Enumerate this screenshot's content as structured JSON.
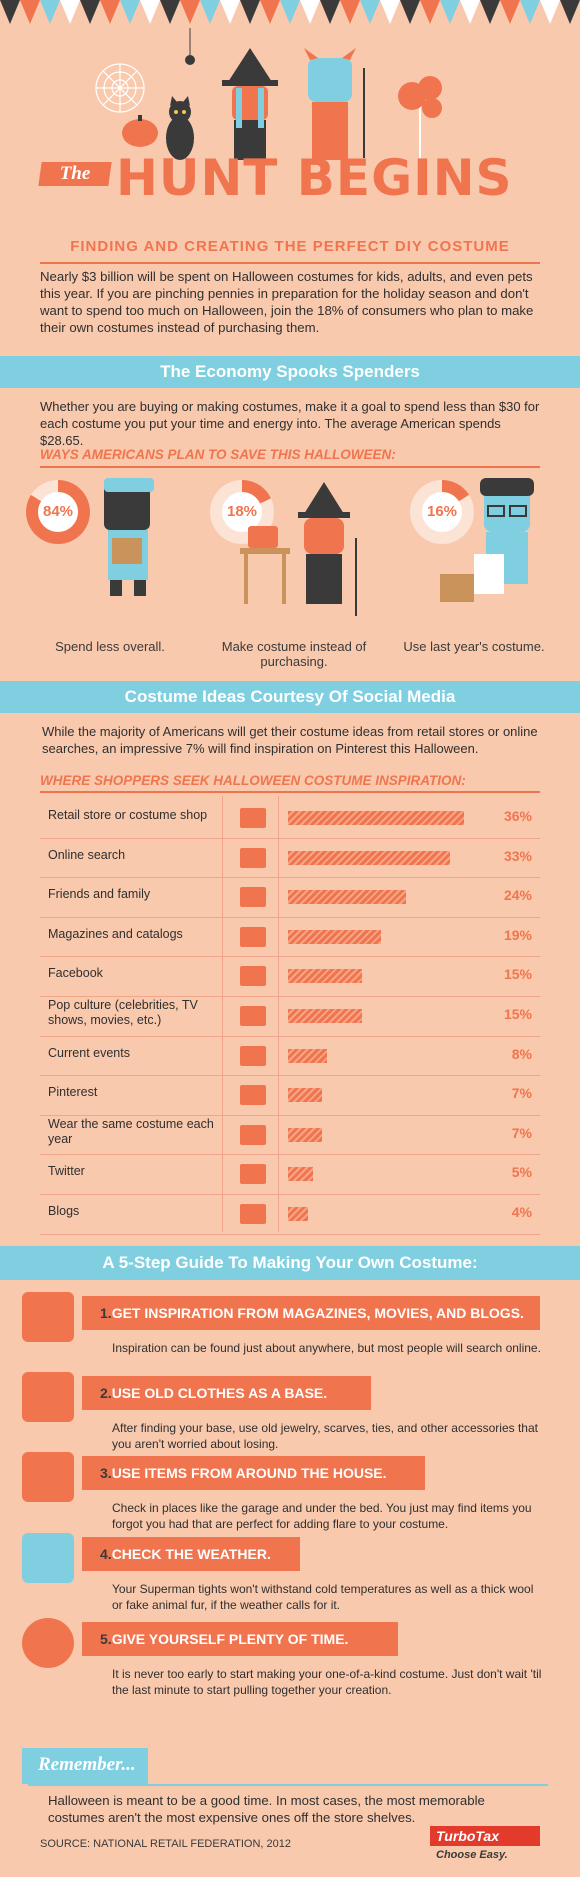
{
  "hero": {
    "pretitle": "The",
    "title": "HUNT BEGINS",
    "subtitle": "FINDING AND CREATING THE PERFECT DIY COSTUME",
    "intro": "Nearly $3 billion will be spent on Halloween costumes for kids, adults, and even pets this year. If you are pinching pennies in preparation for the holiday season and don't want to spend too much on Halloween, join the 18% of consumers who plan to make their own costumes instead of purchasing them."
  },
  "economy": {
    "heading": "The Economy Spooks Spenders",
    "text": "Whether you are buying or making costumes, make it a goal to spend less than $30 for each costume you put your time and energy into. The average American spends $28.65.",
    "subheading": "WAYS AMERICANS PLAN TO SAVE THIS HALLOWEEN:",
    "items": [
      {
        "value_label": "84%",
        "value": 84,
        "label": "Spend less overall."
      },
      {
        "value_label": "18%",
        "value": 18,
        "label": "Make costume instead of purchasing."
      },
      {
        "value_label": "16%",
        "value": 16,
        "label": "Use last year's costume."
      }
    ]
  },
  "social": {
    "heading": "Costume Ideas Courtesy Of Social Media",
    "text": "While the majority of Americans will get their costume ideas from retail stores or online searches, an impressive 7% will find inspiration on Pinterest this Halloween.",
    "subheading": "WHERE SHOPPERS SEEK HALLOWEEN COSTUME INSPIRATION:"
  },
  "chart_data": {
    "type": "bar",
    "categories": [
      "Retail store or costume shop",
      "Online search",
      "Friends and family",
      "Magazines and catalogs",
      "Facebook",
      "Pop culture (celebrities, TV shows, movies, etc.)",
      "Current events",
      "Pinterest",
      "Wear the same costume each year",
      "Twitter",
      "Blogs"
    ],
    "values": [
      36,
      33,
      24,
      19,
      15,
      15,
      8,
      7,
      7,
      5,
      4
    ],
    "value_labels": [
      "36%",
      "33%",
      "24%",
      "19%",
      "15%",
      "15%",
      "8%",
      "7%",
      "7%",
      "5%",
      "4%"
    ],
    "icons": [
      "shop-icon",
      "monitor-icon",
      "house-icon",
      "magazine-icon",
      "facebook-icon",
      "clapper-icon",
      "newspaper-icon",
      "pinterest-icon",
      "spiderweb-icon",
      "twitter-icon",
      "speech-bubble-icon"
    ]
  },
  "guide": {
    "heading": "A 5-Step Guide To Making Your Own Costume:",
    "steps": [
      {
        "num": "1.",
        "title": "GET INSPIRATION FROM MAGAZINES, MOVIES, AND BLOGS.",
        "text": "Inspiration can be found just about anywhere, but most people will search online.",
        "icon": "magazine-icon"
      },
      {
        "num": "2.",
        "title": "USE OLD CLOTHES AS A BASE.",
        "text": "After finding your base, use old jewelry, scarves, ties, and other accessories that you aren't worried about losing.",
        "icon": "shirt-icon"
      },
      {
        "num": "3.",
        "title": "USE ITEMS FROM AROUND THE HOUSE.",
        "text": "Check in places like the garage and under the bed. You just may find items you forgot you had that are perfect for adding flare to your costume.",
        "icon": "flashlight-icon"
      },
      {
        "num": "4.",
        "title": "CHECK THE WEATHER.",
        "text": "Your Superman tights won't withstand cold temperatures as well as a thick wool or fake animal fur, if the weather calls for it.",
        "icon": "rain-cloud-icon"
      },
      {
        "num": "5.",
        "title": "GIVE YOURSELF PLENTY OF TIME.",
        "text": "It is never too early to start making your one-of-a-kind costume. Just don't wait 'til the last minute to start pulling together your creation.",
        "icon": "clock-icon"
      }
    ]
  },
  "remember": {
    "label": "Remember...",
    "text": "Halloween is meant to be a good time. In most cases, the most memorable costumes aren't the most expensive ones off the store shelves."
  },
  "footer": {
    "source": "SOURCE: NATIONAL RETAIL FEDERATION, 2012",
    "brand": "TurboTax",
    "tagline": "Choose Easy."
  },
  "colors": {
    "background": "#f9c9ad",
    "accent": "#f0754f",
    "banner": "#7fcfe0",
    "dark": "#3a3a3a"
  }
}
